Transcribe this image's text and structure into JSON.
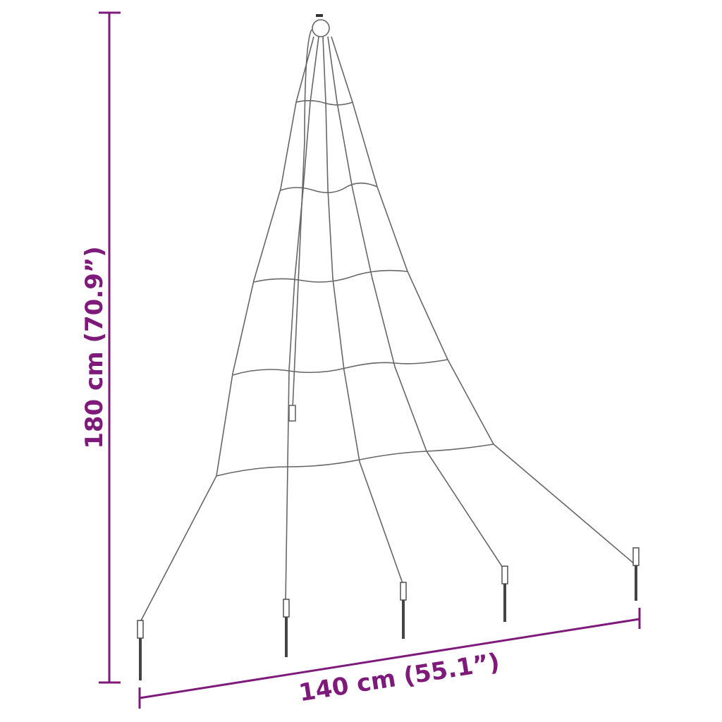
{
  "dimensions": {
    "height_label": "180 cm (70.9”)",
    "width_label": "140 cm (55.1”)"
  },
  "colors": {
    "dimension": "#7d1a7a",
    "drawing": "#555555"
  },
  "product": {
    "strand_count": 5,
    "ring_count": 5,
    "stake_count": 5
  }
}
